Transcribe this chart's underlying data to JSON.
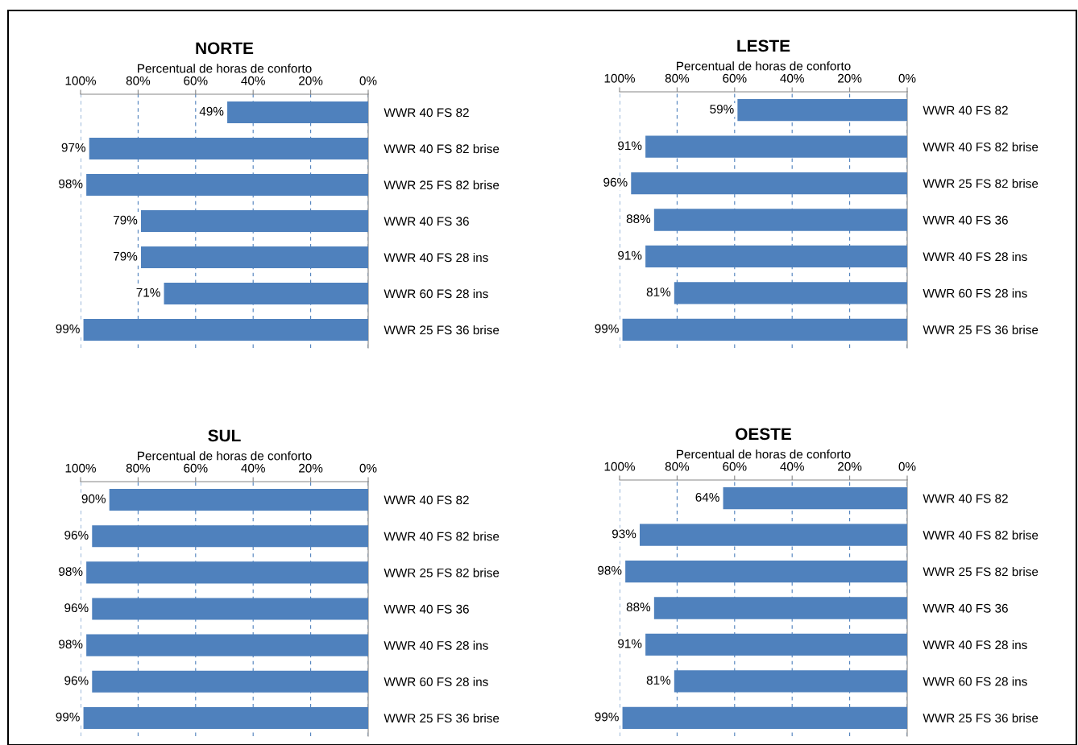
{
  "chart_data": [
    {
      "type": "bar",
      "orientation": "horizontal",
      "title": "NORTE",
      "xlabel": "Percentual de horas de conforto",
      "categories": [
        "WWR 40 FS 82",
        "WWR 40 FS 82 brise",
        "WWR 25 FS 82 brise",
        "WWR 40 FS 36",
        "WWR 40 FS 28 ins",
        "WWR 60 FS 28 ins",
        "WWR 25 FS 36 brise"
      ],
      "values": [
        49,
        97,
        98,
        79,
        79,
        71,
        99
      ],
      "value_labels": [
        "49%",
        "97%",
        "98%",
        "79%",
        "79%",
        "71%",
        "99%"
      ],
      "color": "#4f81bd",
      "xlim": [
        100,
        0
      ],
      "xticks": [
        {
          "value": 100,
          "label": "100%"
        },
        {
          "value": 80,
          "label": "80%"
        },
        {
          "value": 60,
          "label": "60%"
        },
        {
          "value": 40,
          "label": "40%"
        },
        {
          "value": 20,
          "label": "20%"
        },
        {
          "value": 0,
          "label": "0%"
        }
      ],
      "grid": "x"
    },
    {
      "type": "bar",
      "orientation": "horizontal",
      "title": "LESTE",
      "xlabel": "Percentual de horas de conforto",
      "categories": [
        "WWR 40 FS 82",
        "WWR 40 FS 82 brise",
        "WWR 25 FS 82 brise",
        "WWR 40 FS 36",
        "WWR 40 FS 28 ins",
        "WWR 60 FS 28 ins",
        "WWR 25 FS 36 brise"
      ],
      "values": [
        59,
        91,
        96,
        88,
        91,
        81,
        99
      ],
      "value_labels": [
        "59%",
        "91%",
        "96%",
        "88%",
        "91%",
        "81%",
        "99%"
      ],
      "color": "#4f81bd",
      "xlim": [
        100,
        0
      ],
      "xticks": [
        {
          "value": 100,
          "label": "100%"
        },
        {
          "value": 80,
          "label": "80%"
        },
        {
          "value": 60,
          "label": "60%"
        },
        {
          "value": 40,
          "label": "40%"
        },
        {
          "value": 20,
          "label": "20%"
        },
        {
          "value": 0,
          "label": "0%"
        }
      ],
      "grid": "x"
    },
    {
      "type": "bar",
      "orientation": "horizontal",
      "title": "SUL",
      "xlabel": "Percentual de horas de conforto",
      "categories": [
        "WWR 40 FS 82",
        "WWR 40 FS 82 brise",
        "WWR 25 FS 82 brise",
        "WWR 40 FS 36",
        "WWR 40 FS 28 ins",
        "WWR 60 FS 28 ins",
        "WWR 25 FS 36 brise"
      ],
      "values": [
        90,
        96,
        98,
        96,
        98,
        96,
        99
      ],
      "value_labels": [
        "90%",
        "96%",
        "98%",
        "96%",
        "98%",
        "96%",
        "99%"
      ],
      "color": "#4f81bd",
      "xlim": [
        100,
        0
      ],
      "xticks": [
        {
          "value": 100,
          "label": "100%"
        },
        {
          "value": 80,
          "label": "80%"
        },
        {
          "value": 60,
          "label": "60%"
        },
        {
          "value": 40,
          "label": "40%"
        },
        {
          "value": 20,
          "label": "20%"
        },
        {
          "value": 0,
          "label": "0%"
        }
      ],
      "grid": "x"
    },
    {
      "type": "bar",
      "orientation": "horizontal",
      "title": "OESTE",
      "xlabel": "Percentual de horas de conforto",
      "categories": [
        "WWR 40 FS 82",
        "WWR 40 FS 82 brise",
        "WWR 25 FS 82 brise",
        "WWR 40 FS 36",
        "WWR 40 FS 28 ins",
        "WWR 60 FS 28 ins",
        "WWR 25 FS 36 brise"
      ],
      "values": [
        64,
        93,
        98,
        88,
        91,
        81,
        99
      ],
      "value_labels": [
        "64%",
        "93%",
        "98%",
        "88%",
        "91%",
        "81%",
        "99%"
      ],
      "color": "#4f81bd",
      "xlim": [
        100,
        0
      ],
      "xticks": [
        {
          "value": 100,
          "label": "100%"
        },
        {
          "value": 80,
          "label": "80%"
        },
        {
          "value": 60,
          "label": "60%"
        },
        {
          "value": 40,
          "label": "40%"
        },
        {
          "value": 20,
          "label": "20%"
        },
        {
          "value": 0,
          "label": "0%"
        }
      ],
      "grid": "x"
    }
  ]
}
